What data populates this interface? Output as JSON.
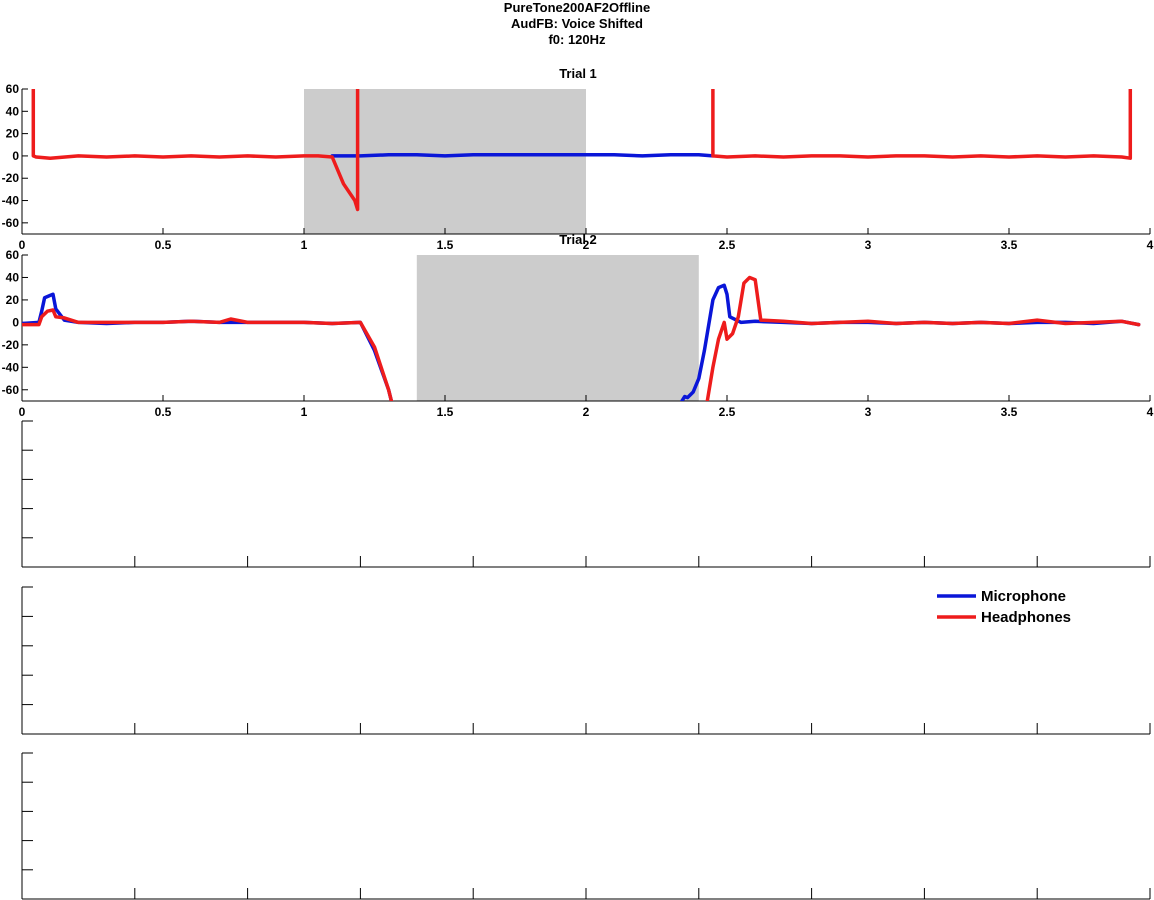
{
  "title_lines": [
    "PureTone200AF2Offline",
    "AudFB: Voice Shifted",
    "f0: 120Hz"
  ],
  "colors": {
    "microphone": "#0a16d8",
    "headphones": "#ee1c1c",
    "shade": "#cccccc"
  },
  "legend": [
    {
      "label": "Microphone",
      "color_key": "microphone"
    },
    {
      "label": "Headphones",
      "color_key": "headphones"
    }
  ],
  "chart_data": [
    {
      "type": "line",
      "title": "Trial 1",
      "xlim": [
        0,
        4
      ],
      "ylim": [
        -70,
        60
      ],
      "x_ticks": [
        0,
        0.5,
        1,
        1.5,
        2,
        2.5,
        3,
        3.5,
        4
      ],
      "x_tick_labels": [
        "0",
        "0.5",
        "1",
        "1.5",
        "2",
        "2.5",
        "3",
        "3.5",
        "4"
      ],
      "y_ticks": [
        60,
        40,
        20,
        0,
        -20,
        -40,
        -60
      ],
      "y_tick_labels": [
        "60",
        "40",
        "20",
        "0",
        "-20",
        "-40",
        "-60"
      ],
      "shaded_interval": [
        1.0,
        2.0
      ],
      "series": [
        {
          "name": "Microphone",
          "color_key": "microphone",
          "x": [
            1.1,
            1.2,
            1.3,
            1.4,
            1.5,
            1.6,
            1.7,
            1.8,
            1.9,
            2.0,
            2.1,
            2.2,
            2.3,
            2.4,
            2.45
          ],
          "y": [
            0,
            0,
            1,
            1,
            0,
            1,
            1,
            1,
            1,
            1,
            1,
            0,
            1,
            1,
            0
          ]
        },
        {
          "name": "Headphones",
          "color_key": "headphones",
          "x": [
            0.04,
            0.04,
            0.05,
            0.1,
            0.2,
            0.3,
            0.4,
            0.5,
            0.6,
            0.7,
            0.8,
            0.9,
            1.0,
            1.05,
            1.1,
            1.14,
            1.18,
            1.19,
            1.19,
            null,
            2.45,
            2.45,
            2.5,
            2.6,
            2.7,
            2.8,
            2.9,
            3.0,
            3.1,
            3.2,
            3.3,
            3.4,
            3.5,
            3.6,
            3.7,
            3.8,
            3.9,
            3.93,
            3.93
          ],
          "y": [
            60,
            0,
            -1,
            -2,
            0,
            -1,
            0,
            -1,
            0,
            -1,
            0,
            -1,
            0,
            0,
            -1,
            -25,
            -40,
            -48,
            60,
            null,
            60,
            0,
            -1,
            0,
            -1,
            0,
            0,
            -1,
            0,
            0,
            -1,
            0,
            -1,
            0,
            -1,
            0,
            -1,
            -2,
            60
          ]
        }
      ]
    },
    {
      "type": "line",
      "title": "Trial 2",
      "xlim": [
        0,
        4
      ],
      "ylim": [
        -70,
        60
      ],
      "x_ticks": [
        0,
        0.5,
        1,
        1.5,
        2,
        2.5,
        3,
        3.5,
        4
      ],
      "x_tick_labels": [
        "0",
        "0.5",
        "1",
        "1.5",
        "2",
        "2.5",
        "3",
        "3.5",
        "4"
      ],
      "y_ticks": [
        60,
        40,
        20,
        0,
        -20,
        -40,
        -60
      ],
      "y_tick_labels": [
        "60",
        "40",
        "20",
        "0",
        "-20",
        "-40",
        "-60"
      ],
      "shaded_interval": [
        1.4,
        2.4
      ],
      "series": [
        {
          "name": "Microphone",
          "color_key": "microphone",
          "x": [
            0.0,
            0.06,
            0.07,
            0.08,
            0.1,
            0.11,
            0.12,
            0.15,
            0.2,
            0.3,
            0.4,
            0.5,
            0.6,
            0.7,
            0.8,
            0.9,
            1.0,
            1.1,
            1.2,
            1.25,
            1.3,
            1.31,
            null,
            2.34,
            2.35,
            2.36,
            2.38,
            2.4,
            2.42,
            2.45,
            2.47,
            2.49,
            2.5,
            2.51,
            2.55,
            2.6,
            2.7,
            2.8,
            2.9,
            3.0,
            3.1,
            3.2,
            3.3,
            3.4,
            3.5,
            3.6,
            3.7,
            3.8,
            3.9,
            3.96
          ],
          "y": [
            -1,
            0,
            10,
            22,
            24,
            25,
            12,
            2,
            0,
            -1,
            0,
            0,
            1,
            0,
            0,
            0,
            0,
            -1,
            0,
            -25,
            -60,
            -70,
            null,
            -70,
            -66,
            -67,
            -62,
            -50,
            -25,
            20,
            31,
            33,
            25,
            5,
            0,
            1,
            0,
            -1,
            0,
            0,
            -1,
            0,
            -1,
            0,
            -1,
            0,
            0,
            -1,
            1,
            -2
          ]
        },
        {
          "name": "Headphones",
          "color_key": "headphones",
          "x": [
            0.0,
            0.06,
            0.07,
            0.09,
            0.11,
            0.12,
            0.15,
            0.2,
            0.3,
            0.4,
            0.5,
            0.6,
            0.7,
            0.74,
            0.8,
            0.9,
            1.0,
            1.1,
            1.2,
            1.25,
            1.3,
            1.31,
            null,
            2.43,
            2.45,
            2.47,
            2.49,
            2.5,
            2.52,
            2.54,
            2.56,
            2.58,
            2.6,
            2.62,
            2.7,
            2.8,
            2.9,
            3.0,
            3.1,
            3.2,
            3.3,
            3.4,
            3.5,
            3.6,
            3.7,
            3.8,
            3.9,
            3.96
          ],
          "y": [
            -2,
            -2,
            5,
            10,
            11,
            5,
            4,
            0,
            0,
            0,
            0,
            1,
            0,
            3,
            0,
            0,
            0,
            -1,
            0,
            -22,
            -60,
            -70,
            null,
            -70,
            -40,
            -15,
            0,
            -15,
            -10,
            5,
            35,
            40,
            38,
            2,
            1,
            -1,
            0,
            1,
            -1,
            0,
            -1,
            0,
            -1,
            2,
            -1,
            0,
            1,
            -2
          ]
        }
      ]
    },
    {
      "type": "line",
      "title": "",
      "series": []
    },
    {
      "type": "line",
      "title": "",
      "series": []
    },
    {
      "type": "line",
      "title": "",
      "series": []
    }
  ]
}
